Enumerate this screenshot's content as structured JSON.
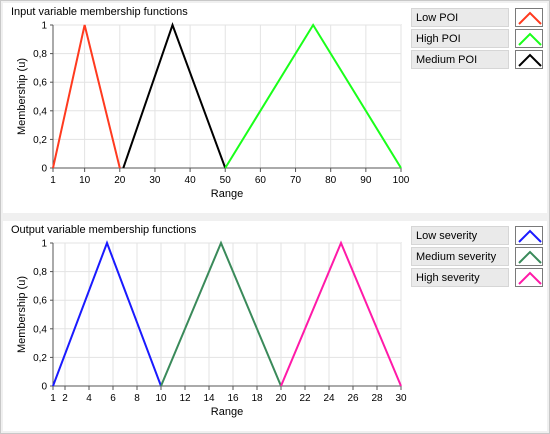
{
  "charts": [
    {
      "id": "input",
      "title": "Input variable membership functions",
      "xlabel": "Range",
      "ylabel": "Membership (u)",
      "x_ticks": [
        "1",
        "10",
        "20",
        "30",
        "40",
        "50",
        "60",
        "70",
        "80",
        "90",
        "100"
      ],
      "x_tick_values": [
        1,
        10,
        20,
        30,
        40,
        50,
        60,
        70,
        80,
        90,
        100
      ],
      "xlim": [
        1,
        100
      ],
      "y_ticks": [
        "0",
        "0,2",
        "0,4",
        "0,6",
        "0,8",
        "1"
      ],
      "y_tick_values": [
        0,
        0.2,
        0.4,
        0.6,
        0.8,
        1
      ],
      "ylim": [
        0,
        1
      ],
      "legend": [
        {
          "label": "Low POI",
          "color": "#ff3a1f"
        },
        {
          "label": "High POI",
          "color": "#1aff1a"
        },
        {
          "label": "Medium POI",
          "color": "#000000"
        }
      ]
    },
    {
      "id": "output",
      "title": "Output variable membership functions",
      "xlabel": "Range",
      "ylabel": "Membership (u)",
      "x_ticks": [
        "1",
        "2",
        "4",
        "6",
        "8",
        "10",
        "12",
        "14",
        "16",
        "18",
        "20",
        "22",
        "24",
        "26",
        "28",
        "30"
      ],
      "x_tick_values": [
        1,
        2,
        4,
        6,
        8,
        10,
        12,
        14,
        16,
        18,
        20,
        22,
        24,
        26,
        28,
        30
      ],
      "xlim": [
        1,
        30
      ],
      "y_ticks": [
        "0",
        "0,2",
        "0,4",
        "0,6",
        "0,8",
        "1"
      ],
      "y_tick_values": [
        0,
        0.2,
        0.4,
        0.6,
        0.8,
        1
      ],
      "ylim": [
        0,
        1
      ],
      "legend": [
        {
          "label": "Low severity",
          "color": "#1a1aff"
        },
        {
          "label": "Medium severity",
          "color": "#3a8a5a"
        },
        {
          "label": "High severity",
          "color": "#ff1aa8"
        }
      ]
    }
  ],
  "chart_data": [
    {
      "type": "line",
      "xlim": [
        1,
        100
      ],
      "ylim": [
        0,
        1
      ],
      "series": [
        {
          "name": "Low POI",
          "x": [
            1,
            10,
            20
          ],
          "y": [
            0,
            1,
            0
          ]
        },
        {
          "name": "Medium POI",
          "x": [
            21,
            35,
            50
          ],
          "y": [
            0,
            1,
            0
          ]
        },
        {
          "name": "High POI",
          "x": [
            50,
            75,
            100
          ],
          "y": [
            0,
            1,
            0
          ]
        }
      ]
    },
    {
      "type": "line",
      "xlim": [
        1,
        30
      ],
      "ylim": [
        0,
        1
      ],
      "series": [
        {
          "name": "Low severity",
          "x": [
            1,
            5.5,
            10
          ],
          "y": [
            0,
            1,
            0
          ]
        },
        {
          "name": "Medium severity",
          "x": [
            10,
            15,
            20
          ],
          "y": [
            0,
            1,
            0
          ]
        },
        {
          "name": "High severity",
          "x": [
            20,
            25,
            30
          ],
          "y": [
            0,
            1,
            0
          ]
        }
      ]
    }
  ]
}
